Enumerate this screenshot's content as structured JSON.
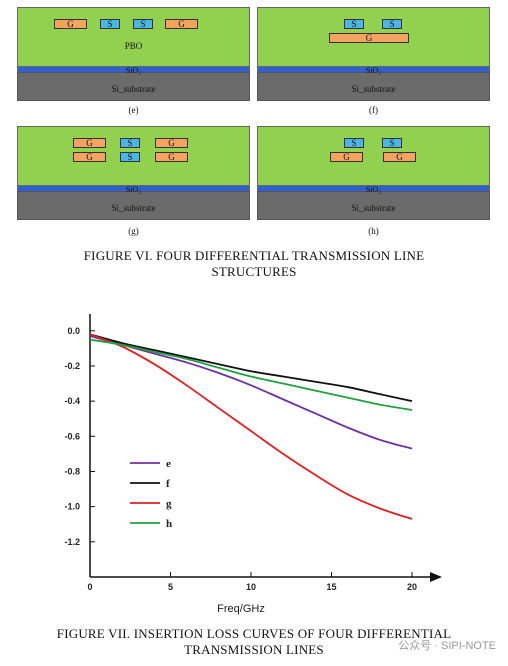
{
  "diagrams": {
    "pbo_label": "PBO",
    "sio2_label": "SiO₂",
    "si_label": "Si_substrate",
    "g_label": "G",
    "s_label": "S",
    "panels": [
      {
        "id": "e",
        "caption": "(e)"
      },
      {
        "id": "f",
        "caption": "(f)"
      },
      {
        "id": "g",
        "caption": "(g)"
      },
      {
        "id": "h",
        "caption": "(h)"
      }
    ]
  },
  "figure6": {
    "line1": "FIGURE VI.  FOUR DIFFERENTIAL TRANSMISSION LINE",
    "line2": "STRUCTURES"
  },
  "figure7": {
    "line1": "FIGURE VII.  INSERTION LOSS CURVES OF FOUR DIFFERENTIAL",
    "line2": "TRANSMISSION LINES"
  },
  "watermark": "公众号 · SIPI-NOTE",
  "chart_data": {
    "type": "line",
    "title": "",
    "xlabel": "Freq/GHz",
    "ylabel": "",
    "xlim": [
      0,
      20
    ],
    "ylim": [
      -1.4,
      0.05
    ],
    "x_ticks": [
      0,
      5,
      10,
      15,
      20
    ],
    "y_ticks": [
      0.0,
      -0.2,
      -0.4,
      -0.6,
      -0.8,
      -1.0,
      -1.2
    ],
    "x_tick_labels": [
      "0",
      "5",
      "10",
      "15",
      "20"
    ],
    "y_tick_labels": [
      "0.0",
      "-0.2",
      "-0.4",
      "-0.6",
      "-0.8",
      "-1.0",
      "-1.2"
    ],
    "legend_position": "lower-left",
    "series": [
      {
        "name": "e",
        "color": "#7030a0",
        "x": [
          0,
          2,
          4,
          6,
          8,
          10,
          12,
          14,
          16,
          18,
          20
        ],
        "y": [
          -0.03,
          -0.08,
          -0.13,
          -0.18,
          -0.24,
          -0.31,
          -0.39,
          -0.47,
          -0.55,
          -0.62,
          -0.67
        ]
      },
      {
        "name": "f",
        "color": "#111111",
        "x": [
          0,
          2,
          4,
          6,
          8,
          10,
          12,
          14,
          16,
          18,
          20
        ],
        "y": [
          -0.02,
          -0.07,
          -0.11,
          -0.15,
          -0.19,
          -0.23,
          -0.26,
          -0.29,
          -0.32,
          -0.36,
          -0.4
        ]
      },
      {
        "name": "g",
        "color": "#e02020",
        "x": [
          0,
          2,
          4,
          6,
          8,
          10,
          12,
          14,
          16,
          18,
          20
        ],
        "y": [
          -0.02,
          -0.09,
          -0.19,
          -0.31,
          -0.44,
          -0.57,
          -0.7,
          -0.82,
          -0.93,
          -1.01,
          -1.07
        ]
      },
      {
        "name": "h",
        "color": "#20a040",
        "x": [
          0,
          2,
          4,
          6,
          8,
          10,
          12,
          14,
          16,
          18,
          20
        ],
        "y": [
          -0.05,
          -0.08,
          -0.12,
          -0.16,
          -0.21,
          -0.26,
          -0.3,
          -0.34,
          -0.38,
          -0.42,
          -0.45
        ]
      }
    ]
  }
}
